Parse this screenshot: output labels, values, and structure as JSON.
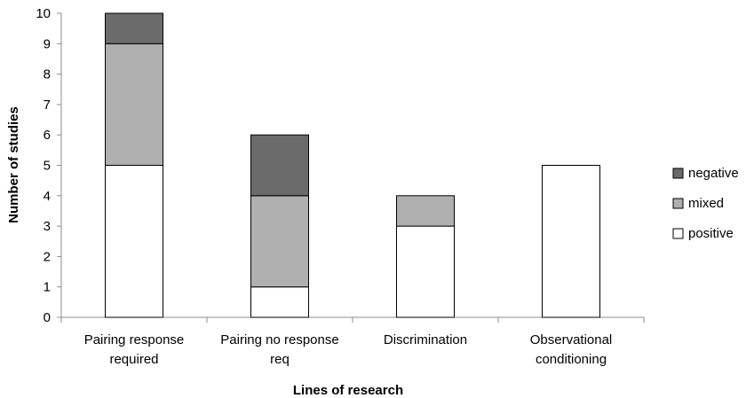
{
  "chart_data": {
    "type": "bar",
    "stacked": true,
    "categories": [
      [
        "Pairing response",
        "required"
      ],
      [
        "Pairing no response",
        "req"
      ],
      [
        "Discrimination"
      ],
      [
        "Observational",
        "conditioning"
      ]
    ],
    "series": [
      {
        "name": "positive",
        "color": "#ffffff",
        "values": [
          5,
          1,
          3,
          5
        ]
      },
      {
        "name": "mixed",
        "color": "#b0b0b0",
        "values": [
          4,
          3,
          1,
          0
        ]
      },
      {
        "name": "negative",
        "color": "#6b6b6b",
        "values": [
          1,
          2,
          0,
          0
        ]
      }
    ],
    "legend_order": [
      "negative",
      "mixed",
      "positive"
    ],
    "legend_position": "right",
    "xlabel": "Lines of research",
    "ylabel": "Number of studies",
    "ylim": [
      0,
      10
    ],
    "yticks": [
      0,
      1,
      2,
      3,
      4,
      5,
      6,
      7,
      8,
      9,
      10
    ],
    "grid": false
  }
}
